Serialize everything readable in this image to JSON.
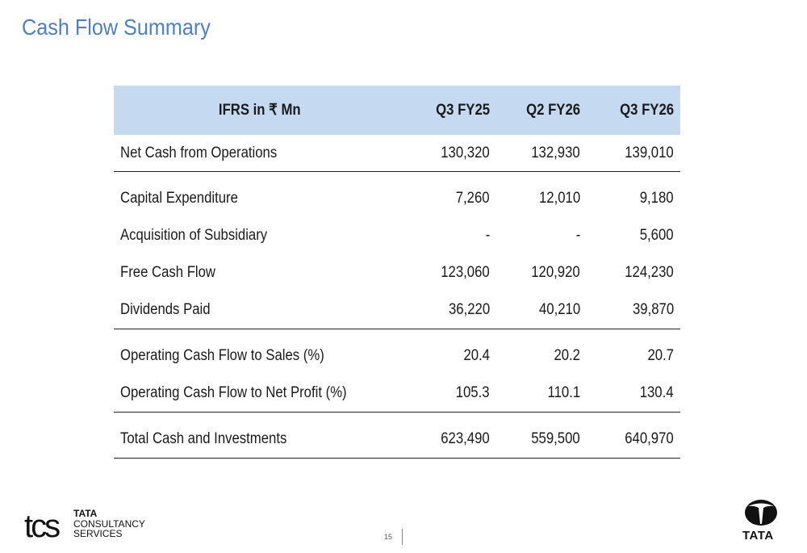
{
  "page": {
    "title": "Cash Flow Summary",
    "page_number": "15"
  },
  "table": {
    "header": [
      "IFRS in ₹ Mn",
      "Q3 FY25",
      "Q2 FY26",
      "Q3 FY26"
    ],
    "rows": [
      {
        "label": "Net Cash from Operations",
        "values": [
          "130,320",
          "132,930",
          "139,010"
        ]
      },
      {
        "label": "Capital Expenditure",
        "values": [
          "7,260",
          "12,010",
          "9,180"
        ]
      },
      {
        "label": "Acquisition of Subsidiary",
        "values": [
          "-",
          "-",
          "5,600"
        ]
      },
      {
        "label": "Free Cash Flow",
        "values": [
          "123,060",
          "120,920",
          "124,230"
        ]
      },
      {
        "label": "Dividends Paid",
        "values": [
          "36,220",
          "40,210",
          "39,870"
        ]
      },
      {
        "label": "Operating Cash Flow to Sales (%)",
        "values": [
          "20.4",
          "20.2",
          "20.7"
        ]
      },
      {
        "label": "Operating Cash Flow to Net Profit (%)",
        "values": [
          "105.3",
          "110.1",
          "130.4"
        ]
      },
      {
        "label": "Total Cash and Investments",
        "values": [
          "623,490",
          "559,500",
          "640,970"
        ]
      }
    ]
  },
  "footer": {
    "tcs_logo_text": "tcs",
    "tcs_line1": "TATA",
    "tcs_line2": "CONSULTANCY",
    "tcs_line3": "SERVICES",
    "tata_wordmark": "TATA"
  },
  "colors": {
    "title": "#4f81bd",
    "header_fill": "#c5d9f1"
  }
}
